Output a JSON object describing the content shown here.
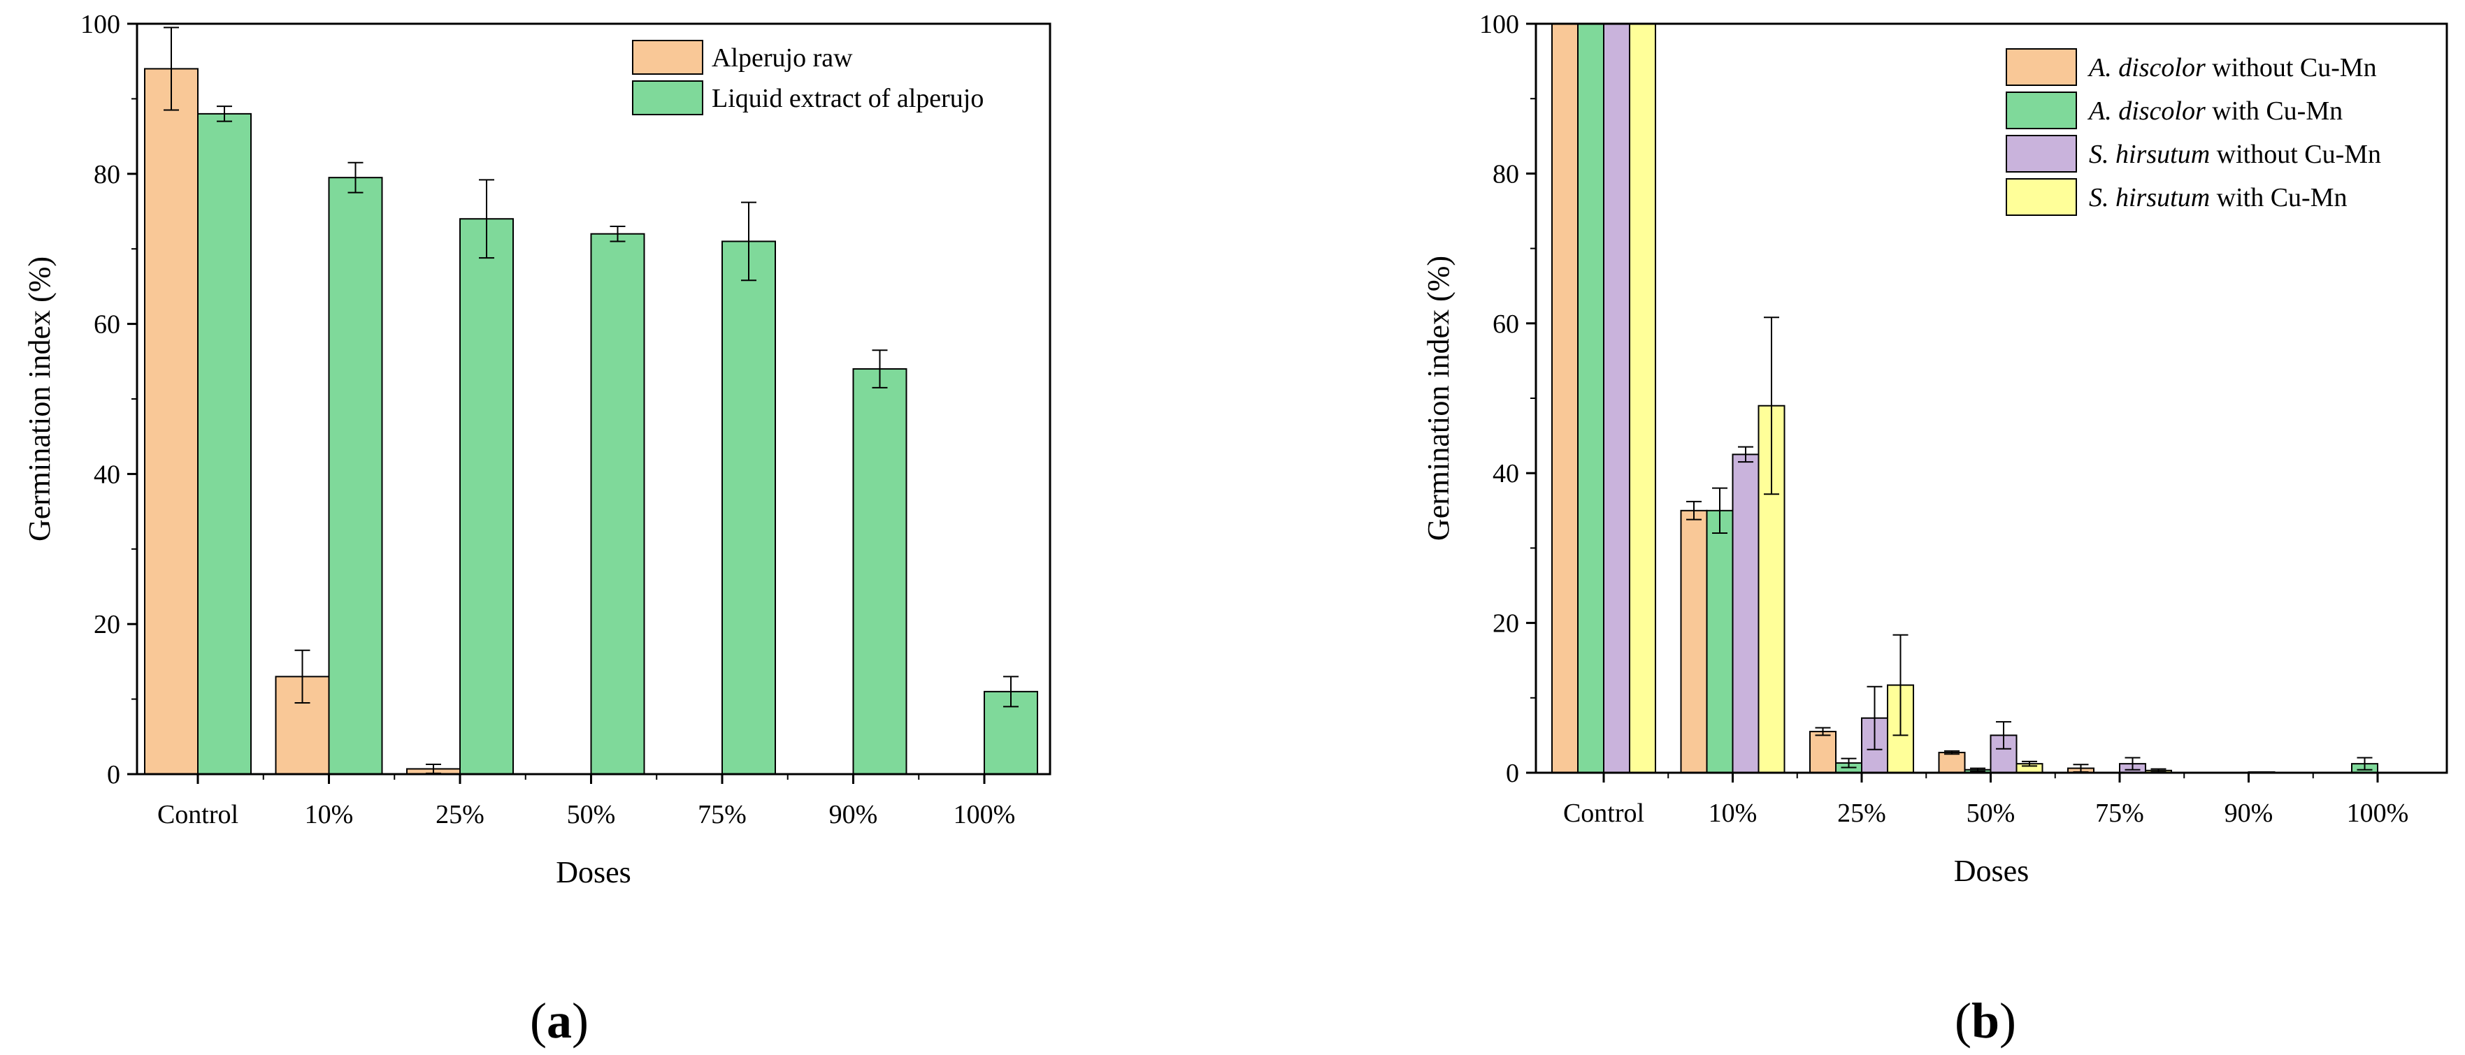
{
  "chart_data": [
    {
      "type": "bar",
      "panel_label": "a",
      "xlabel": "Doses",
      "ylabel": "Germination index (%)",
      "ylim": [
        0,
        100
      ],
      "yticks": [
        0,
        20,
        40,
        60,
        80,
        100
      ],
      "categories": [
        "Control",
        "10%",
        "25%",
        "50%",
        "75%",
        "90%",
        "100%"
      ],
      "legend_position": "top-right",
      "series": [
        {
          "name": "Alperujo raw",
          "color": "#F9C897",
          "values": [
            94,
            13,
            0.7,
            0,
            0,
            0,
            0
          ],
          "errors": [
            5.5,
            3.5,
            0.6,
            0,
            0,
            0,
            0
          ]
        },
        {
          "name": "Liquid extract of alperujo",
          "color": "#7FD99A",
          "values": [
            88,
            79.5,
            74,
            72,
            71,
            54,
            11
          ],
          "errors": [
            1,
            2,
            5.2,
            1,
            5.2,
            2.5,
            2
          ]
        }
      ]
    },
    {
      "type": "bar",
      "panel_label": "b",
      "xlabel": "Doses",
      "ylabel": "Germination index (%)",
      "ylim": [
        0,
        100
      ],
      "yticks": [
        0,
        20,
        40,
        60,
        80,
        100
      ],
      "categories": [
        "Control",
        "10%",
        "25%",
        "50%",
        "75%",
        "90%",
        "100%"
      ],
      "legend_position": "top-right",
      "series": [
        {
          "name": "A. discolor without Cu-Mn",
          "italic_part": "A. discolor",
          "rest_part": " without Cu-Mn",
          "color": "#F9C897",
          "values": [
            100,
            35,
            5.5,
            2.7,
            0.6,
            0,
            0
          ],
          "errors": [
            0,
            1.2,
            0.5,
            0.2,
            0.5,
            0,
            0
          ]
        },
        {
          "name": "A. discolor with Cu-Mn",
          "italic_part": "A. discolor",
          "rest_part": " with Cu-Mn",
          "color": "#7FD99A",
          "values": [
            100,
            35,
            1.3,
            0.4,
            0,
            0,
            1.2
          ],
          "errors": [
            0,
            3,
            0.6,
            0.2,
            0,
            0,
            0.8
          ]
        },
        {
          "name": "S. hirsutum without Cu-Mn",
          "italic_part": "S. hirsutum",
          "rest_part": " without Cu-Mn",
          "color": "#C9B3DC",
          "values": [
            100,
            42.5,
            7.3,
            5,
            1.2,
            0.1,
            0
          ],
          "errors": [
            0,
            1,
            4.2,
            1.8,
            0.8,
            0,
            0
          ]
        },
        {
          "name": "S. hirsutum with Cu-Mn",
          "italic_part": "S. hirsutum",
          "rest_part": " with Cu-Mn",
          "color": "#FFFF99",
          "values": [
            100,
            49,
            11.7,
            1.2,
            0.3,
            0,
            0
          ],
          "errors": [
            0,
            11.8,
            6.7,
            0.3,
            0.2,
            0,
            0
          ]
        }
      ]
    }
  ]
}
